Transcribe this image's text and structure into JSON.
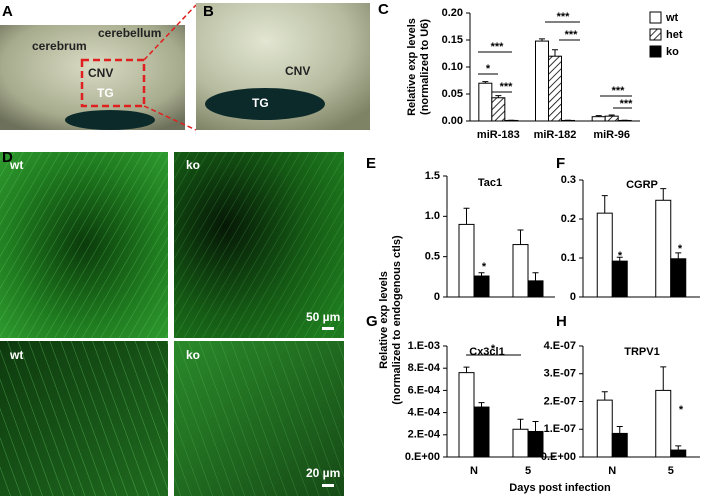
{
  "panel_labels": [
    "A",
    "B",
    "C",
    "D",
    "E",
    "F",
    "G",
    "H"
  ],
  "photo_labels": {
    "A": [
      "cerebrum",
      "cerebellum",
      "CNV",
      "TG"
    ],
    "B": [
      "CNV",
      "TG"
    ],
    "D": [
      "wt",
      "ko",
      "wt",
      "ko",
      "50 µm",
      "20 µm"
    ]
  },
  "shared_y_label": [
    "Relative exp levels",
    "(normalized to endogenous ctls)"
  ],
  "shared_x_label": "Days post infection",
  "chart_data": [
    {
      "type": "bar",
      "ylabel": [
        "Relative exp levels",
        "(normalized to U6)"
      ],
      "categories": [
        "miR-183",
        "miR-182",
        "miR-96"
      ],
      "series": [
        {
          "name": "wt",
          "color": "#ffffff",
          "values": [
            0.07,
            0.148,
            0.008
          ],
          "errors": [
            0.003,
            0.004,
            0.002
          ]
        },
        {
          "name": "het",
          "color": "#ffffff",
          "hatch": true,
          "values": [
            0.043,
            0.12,
            0.009
          ],
          "errors": [
            0.004,
            0.012,
            0.002
          ]
        },
        {
          "name": "ko",
          "color": "#000000",
          "values": [
            0.001,
            0.001,
            0.001
          ],
          "errors": [
            0.0005,
            0.0005,
            0.0005
          ]
        }
      ],
      "ylim": [
        0,
        0.2
      ],
      "yticks": [
        {
          "value": 0,
          "label": "0.00"
        },
        {
          "value": 0.05,
          "label": "0.05"
        },
        {
          "value": 0.1,
          "label": "0.10"
        },
        {
          "value": 0.15,
          "label": "0.15"
        },
        {
          "value": 0.2,
          "label": "0.20"
        }
      ],
      "annotations": [
        "***",
        "*",
        "***",
        "***",
        "***",
        "***",
        "***"
      ],
      "legend": "upper right"
    },
    {
      "type": "bar",
      "title": "Tac1",
      "categories": [
        null,
        null
      ],
      "series": [
        {
          "color": "#ffffff",
          "values": [
            0.9,
            0.65
          ],
          "errors": [
            0.2,
            0.18
          ]
        },
        {
          "color": "#000000",
          "values": [
            0.26,
            0.2
          ],
          "errors": [
            0.04,
            0.1
          ]
        }
      ],
      "ylim": [
        0,
        1.5
      ],
      "yticks": [
        0,
        0.5,
        {
          "value": 1,
          "label": "1.0"
        },
        1.5
      ],
      "annotations": [
        "*"
      ]
    },
    {
      "type": "bar",
      "title": "CGRP",
      "categories": [
        null,
        null
      ],
      "series": [
        {
          "color": "#ffffff",
          "values": [
            0.215,
            0.248
          ],
          "errors": [
            0.045,
            0.03
          ]
        },
        {
          "color": "#000000",
          "values": [
            0.092,
            0.098
          ],
          "errors": [
            0.01,
            0.015
          ]
        }
      ],
      "ylim": [
        0,
        0.3
      ],
      "yticks": [
        0,
        0.1,
        0.2,
        0.3
      ],
      "annotations": [
        "*",
        "*"
      ]
    },
    {
      "type": "bar",
      "title": "Cx3cl1",
      "categories": [
        "N",
        "5"
      ],
      "series": [
        {
          "color": "#ffffff",
          "values": [
            0.00076,
            0.00025
          ],
          "errors": [
            5e-05,
            9e-05
          ]
        },
        {
          "color": "#000000",
          "values": [
            0.00045,
            0.00023
          ],
          "errors": [
            4e-05,
            9e-05
          ]
        }
      ],
      "ylim": [
        0,
        0.001
      ],
      "yticks": [
        {
          "value": 0,
          "label": "0.E+00"
        },
        {
          "value": 0.0002,
          "label": "2.E-04"
        },
        {
          "value": 0.0004,
          "label": "4.E-04"
        },
        {
          "value": 0.0006,
          "label": "6.E-04"
        },
        {
          "value": 0.0008,
          "label": "8.E-04"
        },
        {
          "value": 0.001,
          "label": "1.E-03"
        }
      ],
      "annotations": [
        "*"
      ]
    },
    {
      "type": "bar",
      "title": "TRPV1",
      "categories": [
        "N",
        "5"
      ],
      "series": [
        {
          "color": "#ffffff",
          "values": [
            2.05e-07,
            2.4e-07
          ],
          "errors": [
            3e-08,
            8.5e-08
          ]
        },
        {
          "color": "#000000",
          "values": [
            8.5e-08,
            2.5e-08
          ],
          "errors": [
            2.5e-08,
            1.5e-08
          ]
        }
      ],
      "ylim": [
        0,
        4e-07
      ],
      "yticks": [
        {
          "value": 0,
          "label": "0.E+00"
        },
        {
          "value": 1e-07,
          "label": "1.E-07"
        },
        {
          "value": 2e-07,
          "label": "2.E-07"
        },
        {
          "value": 3e-07,
          "label": "3.E-07"
        },
        {
          "value": 4e-07,
          "label": "4.E-07"
        }
      ],
      "annotations": [
        "*"
      ]
    }
  ]
}
